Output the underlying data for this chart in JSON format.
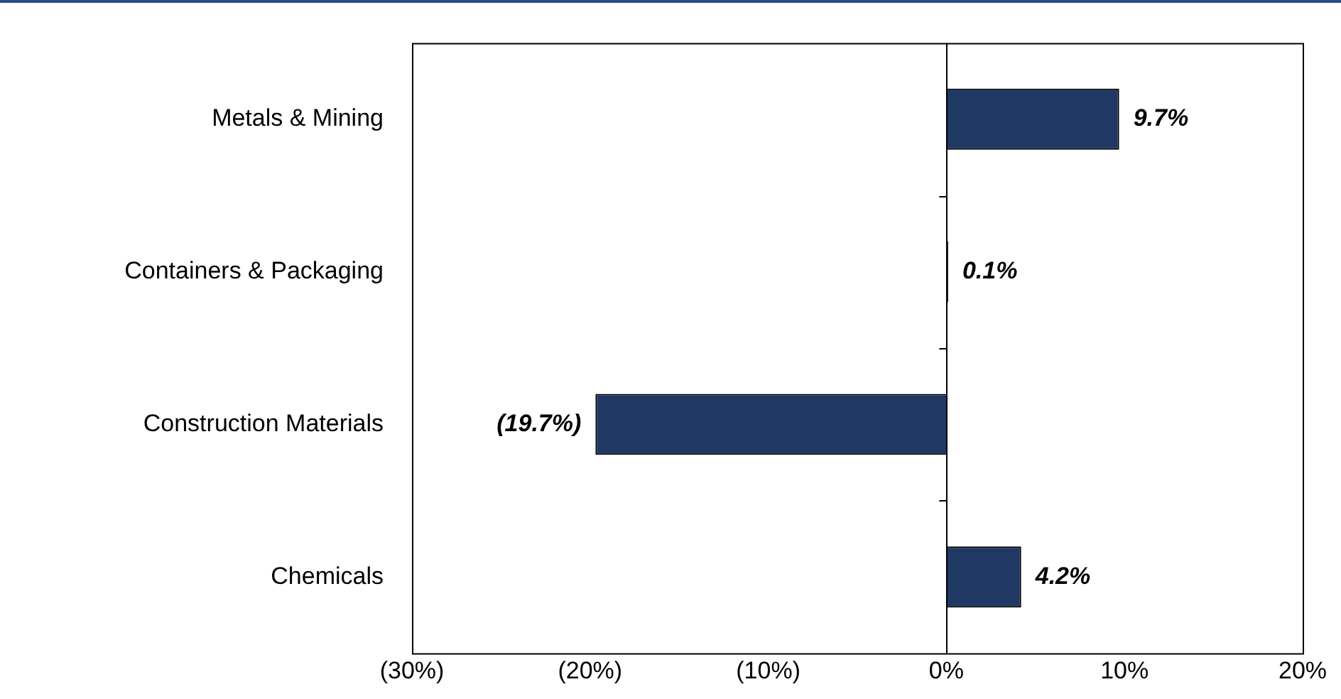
{
  "chart_data": {
    "type": "bar",
    "orientation": "horizontal",
    "categories": [
      "Metals & Mining",
      "Containers & Packaging",
      "Construction Materials",
      "Chemicals"
    ],
    "values": [
      9.7,
      0.1,
      -19.7,
      4.2
    ],
    "value_labels": [
      "9.7%",
      "0.1%",
      "(19.7%)",
      "4.2%"
    ],
    "color": "#1f3864",
    "xlim": [
      -30,
      20
    ],
    "xticks": [
      {
        "value": -30,
        "label": "(30%)"
      },
      {
        "value": -20,
        "label": "(20%)"
      },
      {
        "value": -10,
        "label": "(10%)"
      },
      {
        "value": 0,
        "label": "0%"
      },
      {
        "value": 10,
        "label": "10%"
      },
      {
        "value": 20,
        "label": "20%"
      }
    ],
    "legend": false
  }
}
